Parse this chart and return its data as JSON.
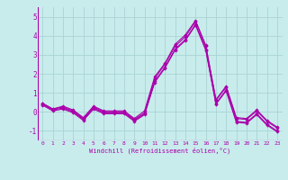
{
  "title": "",
  "xlabel": "Windchill (Refroidissement éolien,°C)",
  "bg_color": "#c8ecec",
  "grid_color": "#aad4d4",
  "line_color": "#aa00aa",
  "xlim": [
    -0.5,
    23.5
  ],
  "ylim": [
    -1.5,
    5.5
  ],
  "xticks": [
    0,
    1,
    2,
    3,
    4,
    5,
    6,
    7,
    8,
    9,
    10,
    11,
    12,
    13,
    14,
    15,
    16,
    17,
    18,
    19,
    20,
    21,
    22,
    23
  ],
  "yticks": [
    -1,
    0,
    1,
    2,
    3,
    4,
    5
  ],
  "series": [
    [
      0.45,
      0.15,
      0.3,
      0.1,
      -0.3,
      0.3,
      0.05,
      0.05,
      0.05,
      -0.35,
      0.05,
      1.85,
      2.55,
      3.55,
      4.05,
      4.8,
      3.5,
      0.65,
      1.35,
      -0.3,
      -0.35,
      0.1,
      -0.45,
      -0.8
    ],
    [
      0.45,
      0.15,
      0.25,
      0.05,
      -0.35,
      0.25,
      0.0,
      0.0,
      0.0,
      -0.4,
      -0.05,
      1.75,
      2.5,
      3.45,
      3.95,
      4.75,
      3.45,
      0.6,
      1.3,
      -0.35,
      -0.4,
      0.05,
      -0.5,
      -0.85
    ],
    [
      0.4,
      0.1,
      0.2,
      0.0,
      -0.4,
      0.2,
      -0.05,
      -0.05,
      -0.05,
      -0.45,
      -0.1,
      1.6,
      2.35,
      3.3,
      3.8,
      4.6,
      3.3,
      0.45,
      1.15,
      -0.5,
      -0.55,
      -0.1,
      -0.65,
      -1.0
    ],
    [
      0.35,
      0.05,
      0.15,
      -0.05,
      -0.45,
      0.15,
      -0.1,
      -0.1,
      -0.1,
      -0.5,
      -0.15,
      1.55,
      2.3,
      3.25,
      3.75,
      4.55,
      3.25,
      0.4,
      1.1,
      -0.55,
      -0.6,
      -0.15,
      -0.7,
      -1.05
    ]
  ]
}
